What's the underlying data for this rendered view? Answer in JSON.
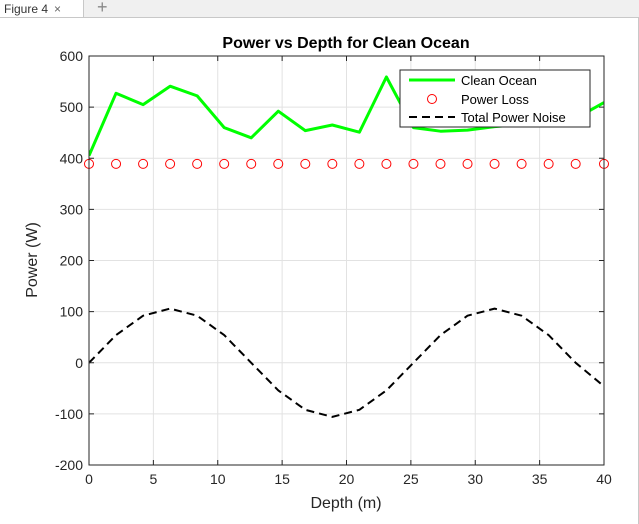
{
  "window": {
    "tab_label": "Figure 4",
    "close_glyph": "×",
    "add_glyph": "+"
  },
  "chart_data": {
    "type": "line",
    "title": "Power vs Depth for Clean Ocean",
    "xlabel": "Depth (m)",
    "ylabel": "Power (W)",
    "xlim": [
      0,
      40
    ],
    "ylim": [
      -200,
      600
    ],
    "xticks": [
      0,
      5,
      10,
      15,
      20,
      25,
      30,
      35,
      40
    ],
    "yticks": [
      -200,
      -100,
      0,
      100,
      200,
      300,
      400,
      500,
      600
    ],
    "grid": true,
    "legend_position": "top-right",
    "series": [
      {
        "name": "Clean Ocean",
        "style": "line",
        "color": "#00ff00",
        "x": [
          0,
          2.1,
          4.2,
          6.3,
          8.4,
          10.5,
          12.6,
          14.7,
          16.8,
          18.9,
          21.0,
          23.1,
          25.2,
          27.3,
          29.4,
          31.5,
          33.6,
          35.7,
          37.8,
          40
        ],
        "y": [
          405,
          527,
          505,
          541,
          522,
          460,
          440,
          492,
          454,
          465,
          451,
          559,
          460,
          453,
          455,
          462,
          466,
          470,
          478,
          509
        ]
      },
      {
        "name": "Power Loss",
        "style": "markers",
        "marker": "circle",
        "color": "#ff0000",
        "x": [
          0,
          2.1,
          4.2,
          6.3,
          8.4,
          10.5,
          12.6,
          14.7,
          16.8,
          18.9,
          21.0,
          23.1,
          25.2,
          27.3,
          29.4,
          31.5,
          33.6,
          35.7,
          37.8,
          40
        ],
        "y": [
          389,
          389,
          389,
          389,
          389,
          389,
          389,
          389,
          389,
          389,
          389,
          389,
          389,
          389,
          389,
          389,
          389,
          389,
          389,
          389
        ]
      },
      {
        "name": "Total Power Noise",
        "style": "dashed",
        "color": "#000000",
        "x": [
          0,
          2.1,
          4.2,
          6.3,
          8.4,
          10.5,
          12.6,
          14.7,
          16.8,
          18.9,
          21.0,
          23.1,
          25.2,
          27.3,
          29.4,
          31.5,
          33.6,
          35.7,
          37.8,
          40
        ],
        "y": [
          0,
          54,
          92,
          106,
          92,
          54,
          0,
          -54,
          -92,
          -106,
          -92,
          -54,
          0,
          54,
          92,
          106,
          92,
          54,
          0,
          -46
        ]
      }
    ]
  }
}
